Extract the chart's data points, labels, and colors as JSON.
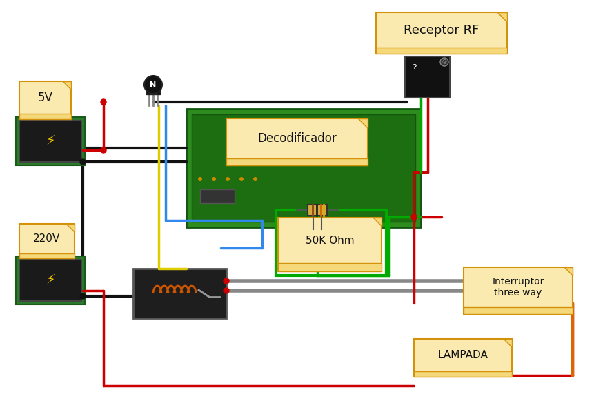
{
  "bg_color": "#ffffff",
  "labels": {
    "receptor_rf": "Receptor RF",
    "decodificador": "Decodificador",
    "ohm": "50K Ohm",
    "interruptor": "Interruptor\nthree way",
    "lampada": "LAMPADA",
    "v5": "5V",
    "v220": "220V"
  },
  "label_bg": "#f5d87a",
  "label_bg2": "#faeab0",
  "label_border": "#d4920a",
  "green_board": "#2e8b1e",
  "green_board2": "#1d6e10",
  "wire_red": "#cc0000",
  "wire_black": "#111111",
  "wire_yellow": "#ddcc00",
  "wire_blue": "#3388ee",
  "wire_green": "#00aa00",
  "wire_gray": "#888888",
  "wire_orange": "#dd6600",
  "power_bg": "#1a1a1a",
  "power_border": "#2a7a2a",
  "relay_bg": "#222222",
  "rf_bg": "#111111"
}
